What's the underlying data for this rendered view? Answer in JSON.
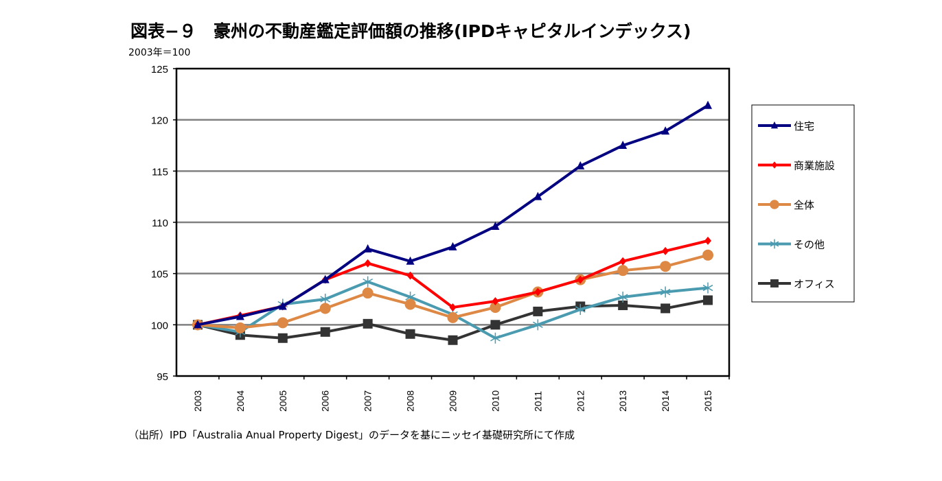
{
  "chart_data": {
    "type": "line",
    "title": "図表−９　豪州の不動産鑑定評価額の推移(IPDキャピタルインデックス)",
    "unit_label": "2003年＝100",
    "source": "（出所）IPD「Australia Anual Property Digest」のデータを基にニッセイ基礎研究所にて作成",
    "ylim": [
      95,
      125
    ],
    "yticks": [
      95,
      100,
      105,
      110,
      115,
      120,
      125
    ],
    "grid": true,
    "legend_position": "right",
    "categories": [
      "2003",
      "2004",
      "2005",
      "2006",
      "2007",
      "2008",
      "2009",
      "2010",
      "2011",
      "2012",
      "2013",
      "2014",
      "2015"
    ],
    "series": [
      {
        "name": "住宅",
        "color": "#000080",
        "marker": "triangle",
        "values": [
          100,
          100.8,
          101.8,
          104.4,
          107.4,
          106.2,
          107.6,
          109.6,
          112.5,
          115.5,
          117.5,
          118.9,
          121.4
        ]
      },
      {
        "name": "商業施設",
        "color": "#ff0000",
        "marker": "diamond",
        "values": [
          100,
          100.9,
          101.8,
          104.4,
          106.0,
          104.8,
          101.7,
          102.3,
          103.2,
          104.4,
          106.2,
          107.2,
          108.2
        ]
      },
      {
        "name": "全体",
        "color": "#dd8844",
        "marker": "circle",
        "values": [
          100,
          99.7,
          100.2,
          101.6,
          103.1,
          102.0,
          100.7,
          101.7,
          103.2,
          104.4,
          105.3,
          105.7,
          106.8
        ]
      },
      {
        "name": "その他",
        "color": "#4a9ab0",
        "marker": "star",
        "values": [
          100,
          99.3,
          102.0,
          102.5,
          104.2,
          102.7,
          101.0,
          98.7,
          100.0,
          101.5,
          102.7,
          103.2,
          103.6
        ]
      },
      {
        "name": "オフィス",
        "color": "#333333",
        "marker": "square",
        "values": [
          100,
          99.0,
          98.7,
          99.3,
          100.1,
          99.1,
          98.5,
          100.0,
          101.3,
          101.8,
          101.9,
          101.6,
          102.4
        ]
      }
    ]
  }
}
